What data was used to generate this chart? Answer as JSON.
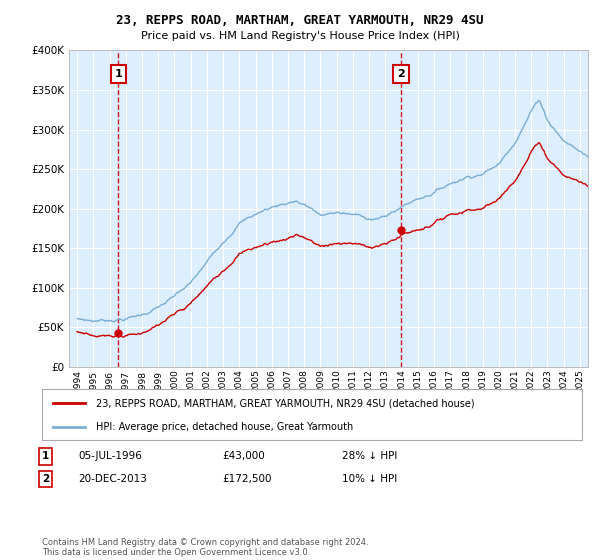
{
  "title": "23, REPPS ROAD, MARTHAM, GREAT YARMOUTH, NR29 4SU",
  "subtitle": "Price paid vs. HM Land Registry's House Price Index (HPI)",
  "legend_line1": "23, REPPS ROAD, MARTHAM, GREAT YARMOUTH, NR29 4SU (detached house)",
  "legend_line2": "HPI: Average price, detached house, Great Yarmouth",
  "annotation1_date": "05-JUL-1996",
  "annotation1_price": "£43,000",
  "annotation1_hpi": "28% ↓ HPI",
  "annotation2_date": "20-DEC-2013",
  "annotation2_price": "£172,500",
  "annotation2_hpi": "10% ↓ HPI",
  "footer": "Contains HM Land Registry data © Crown copyright and database right 2024.\nThis data is licensed under the Open Government Licence v3.0.",
  "sale1_x": 1996.54,
  "sale1_y": 43000,
  "sale2_x": 2013.97,
  "sale2_y": 172500,
  "hpi_line_color": "#7aadd4",
  "price_line_color": "#cc0000",
  "sale_dot_color": "#cc0000",
  "vline_color": "#cc0000",
  "bg_color": "#ddeeff",
  "ylim": [
    0,
    400000
  ],
  "xlim": [
    1993.5,
    2025.5
  ]
}
